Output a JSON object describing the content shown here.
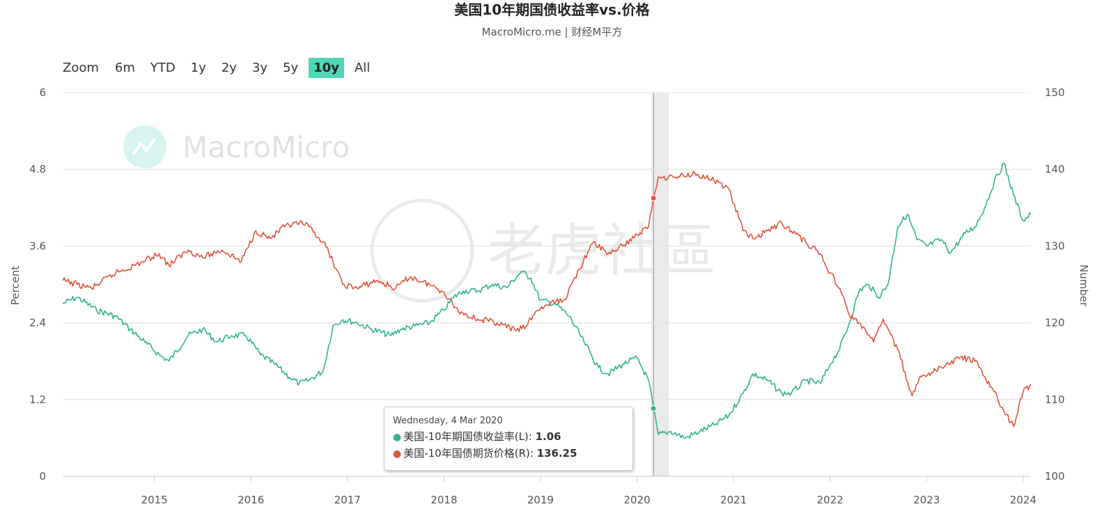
{
  "header": {
    "title": "美国10年期国债收益率vs.价格",
    "subtitle": "MacroMicro.me | 财经M平方"
  },
  "zoom": {
    "label": "Zoom",
    "buttons": [
      "6m",
      "YTD",
      "1y",
      "2y",
      "3y",
      "5y",
      "10y",
      "All"
    ],
    "active": "10y"
  },
  "watermarks": {
    "brand": "MacroMicro",
    "community": "老虎社區"
  },
  "tooltip": {
    "date": "Wednesday, 4 Mar 2020",
    "rows": [
      {
        "label": "美国-10年期国债收益率(L): ",
        "value": "1.06",
        "color": "#2fb393"
      },
      {
        "label": "美国-10年国债期货价格(R): ",
        "value": "136.25",
        "color": "#e0533c"
      }
    ]
  },
  "chart_data": {
    "type": "line",
    "x_range": [
      2014.05,
      2024.08
    ],
    "x_ticks": [
      "2015",
      "2016",
      "2017",
      "2018",
      "2019",
      "2020",
      "2021",
      "2022",
      "2023",
      "2024"
    ],
    "ylabel_left": "Percent",
    "ylabel_right": "Number",
    "ylim_left": [
      0,
      6
    ],
    "ylim_right": [
      100,
      150
    ],
    "yticks_left": [
      "0",
      "1.2",
      "2.4",
      "3.6",
      "4.8",
      "6"
    ],
    "yticks_right": [
      "100",
      "110",
      "120",
      "130",
      "140",
      "150"
    ],
    "grid": true,
    "highlight_band": [
      2020.15,
      2020.33
    ],
    "series": [
      {
        "name": "美国-10年期国债收益率(L)",
        "axis": "left",
        "color": "#2fb393",
        "x": [
          2014.05,
          2014.2,
          2014.4,
          2014.6,
          2014.75,
          2014.9,
          2015.05,
          2015.15,
          2015.35,
          2015.5,
          2015.65,
          2015.8,
          2015.95,
          2016.1,
          2016.25,
          2016.4,
          2016.5,
          2016.6,
          2016.75,
          2016.85,
          2016.95,
          2017.1,
          2017.25,
          2017.45,
          2017.55,
          2017.7,
          2017.85,
          2018.0,
          2018.1,
          2018.2,
          2018.35,
          2018.5,
          2018.65,
          2018.8,
          2018.9,
          2019.0,
          2019.15,
          2019.3,
          2019.45,
          2019.6,
          2019.7,
          2019.85,
          2020.0,
          2020.12,
          2020.17,
          2020.22,
          2020.35,
          2020.5,
          2020.65,
          2020.8,
          2020.95,
          2021.1,
          2021.2,
          2021.35,
          2021.5,
          2021.6,
          2021.75,
          2021.9,
          2022.0,
          2022.1,
          2022.2,
          2022.3,
          2022.4,
          2022.5,
          2022.6,
          2022.7,
          2022.8,
          2022.9,
          2023.0,
          2023.15,
          2023.25,
          2023.4,
          2023.5,
          2023.6,
          2023.7,
          2023.8,
          2023.9,
          2024.0,
          2024.08
        ],
        "values": [
          2.7,
          2.8,
          2.6,
          2.5,
          2.3,
          2.1,
          1.9,
          1.8,
          2.2,
          2.3,
          2.1,
          2.2,
          2.2,
          1.9,
          1.75,
          1.55,
          1.45,
          1.5,
          1.65,
          2.35,
          2.45,
          2.4,
          2.3,
          2.2,
          2.3,
          2.35,
          2.4,
          2.6,
          2.8,
          2.9,
          2.9,
          3.0,
          2.95,
          3.2,
          3.1,
          2.75,
          2.7,
          2.5,
          2.1,
          1.7,
          1.6,
          1.75,
          1.85,
          1.5,
          1.06,
          0.65,
          0.7,
          0.6,
          0.7,
          0.8,
          0.95,
          1.3,
          1.6,
          1.5,
          1.3,
          1.3,
          1.5,
          1.45,
          1.75,
          2.0,
          2.4,
          2.9,
          3.0,
          2.8,
          3.0,
          3.9,
          4.1,
          3.7,
          3.6,
          3.7,
          3.5,
          3.8,
          3.9,
          4.2,
          4.6,
          4.9,
          4.4,
          4.0,
          4.1
        ]
      },
      {
        "name": "美国-10年国债期货价格(R)",
        "axis": "right",
        "color": "#e0533c",
        "x": [
          2014.05,
          2014.2,
          2014.35,
          2014.6,
          2014.8,
          2015.05,
          2015.15,
          2015.35,
          2015.5,
          2015.7,
          2015.9,
          2016.05,
          2016.2,
          2016.35,
          2016.5,
          2016.6,
          2016.75,
          2016.85,
          2016.95,
          2017.1,
          2017.3,
          2017.5,
          2017.65,
          2017.85,
          2018.0,
          2018.15,
          2018.35,
          2018.55,
          2018.75,
          2018.85,
          2018.95,
          2019.1,
          2019.25,
          2019.4,
          2019.55,
          2019.7,
          2019.85,
          2020.0,
          2020.12,
          2020.17,
          2020.22,
          2020.4,
          2020.6,
          2020.8,
          2020.95,
          2021.1,
          2021.2,
          2021.35,
          2021.5,
          2021.6,
          2021.75,
          2021.9,
          2022.0,
          2022.1,
          2022.2,
          2022.3,
          2022.45,
          2022.55,
          2022.7,
          2022.85,
          2022.95,
          2023.05,
          2023.2,
          2023.35,
          2023.5,
          2023.6,
          2023.7,
          2023.8,
          2023.9,
          2024.0,
          2024.08
        ],
        "values": [
          125.5,
          125.0,
          124.5,
          126.5,
          127.5,
          129.0,
          127.5,
          129.5,
          128.5,
          129.5,
          128.0,
          132.0,
          131.0,
          132.5,
          133.0,
          132.5,
          130.5,
          128.0,
          125.0,
          124.5,
          125.5,
          124.5,
          126.0,
          125.0,
          124.0,
          121.5,
          120.5,
          120.0,
          119.0,
          119.5,
          121.5,
          122.5,
          123.0,
          127.0,
          130.5,
          129.0,
          130.0,
          131.5,
          132.5,
          136.25,
          139.0,
          139.0,
          139.5,
          138.5,
          137.5,
          132.0,
          131.0,
          132.0,
          133.0,
          132.0,
          130.5,
          129.0,
          126.5,
          124.5,
          121.0,
          120.0,
          117.5,
          120.5,
          116.5,
          110.5,
          113.0,
          113.5,
          114.5,
          115.5,
          115.0,
          113.0,
          111.0,
          108.5,
          106.5,
          111.0,
          112.0
        ]
      }
    ]
  }
}
